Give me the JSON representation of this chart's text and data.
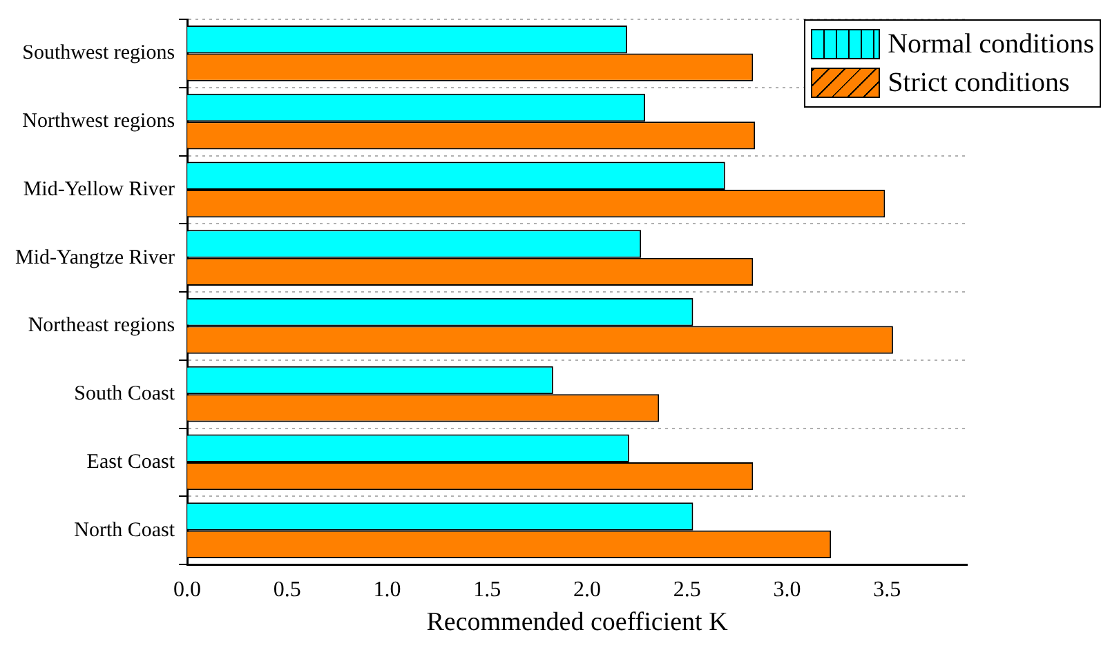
{
  "chart_data": {
    "type": "bar",
    "orientation": "horizontal",
    "xlabel": "Recommended coefficient K",
    "categories": [
      "Southwest regions",
      "Northwest regions",
      "Mid-Yellow River",
      "Mid-Yangtze River",
      "Northeast regions",
      "South Coast",
      "East Coast",
      "North Coast"
    ],
    "series": [
      {
        "name": "Normal conditions",
        "color": "#00ffff",
        "values": [
          2.2,
          2.29,
          2.69,
          2.27,
          2.53,
          1.83,
          2.21,
          2.53
        ]
      },
      {
        "name": "Strict conditions",
        "color": "#ff8000",
        "values": [
          2.83,
          2.84,
          3.49,
          2.83,
          3.53,
          2.36,
          2.83,
          3.22
        ]
      }
    ],
    "xlim": [
      0,
      3.9
    ],
    "xticks": [
      {
        "value": 0,
        "label": "0.0"
      },
      {
        "value": 0.5,
        "label": "0.5"
      },
      {
        "value": 1,
        "label": "1.0"
      },
      {
        "value": 1.5,
        "label": "1.5"
      },
      {
        "value": 2,
        "label": "2.0"
      },
      {
        "value": 2.5,
        "label": "2.5"
      },
      {
        "value": 3,
        "label": "3.0"
      },
      {
        "value": 3.5,
        "label": "3.5"
      }
    ],
    "grid": "y",
    "legend": "top right"
  }
}
